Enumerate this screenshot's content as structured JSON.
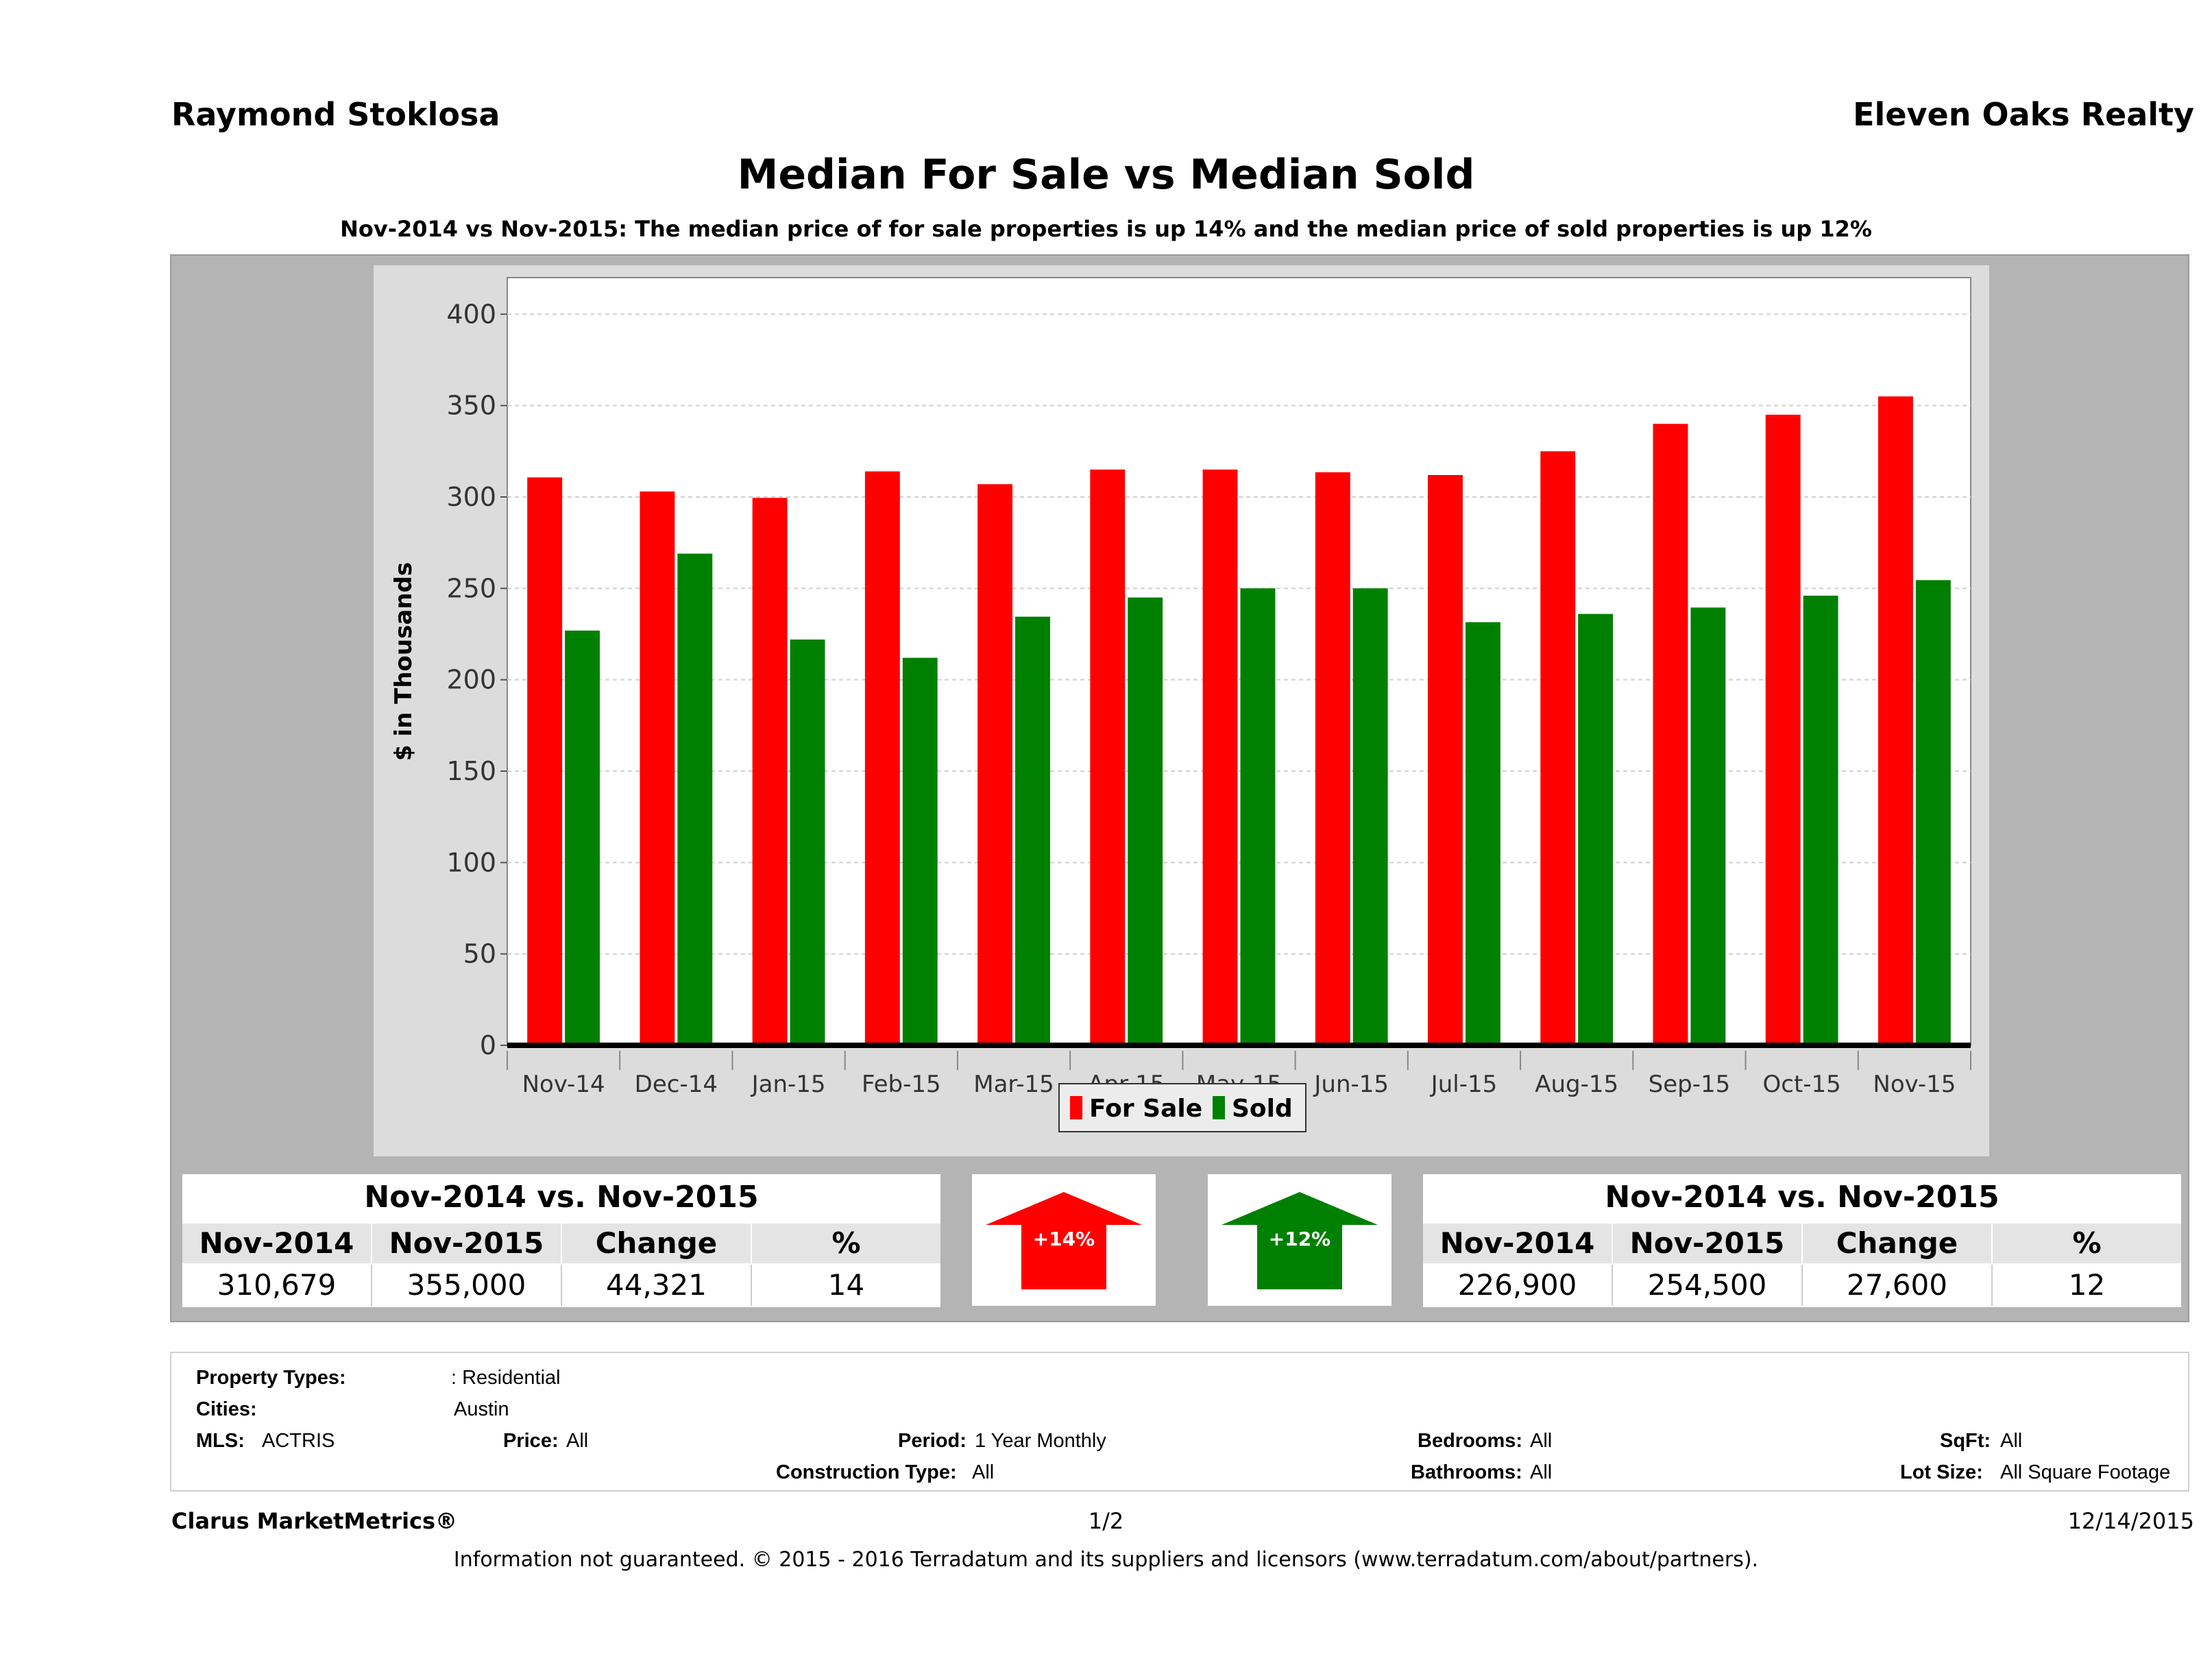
{
  "header": {
    "agent": "Raymond Stoklosa",
    "brokerage": "Eleven Oaks Realty",
    "title": "Median For Sale vs Median Sold",
    "subtitle": "Nov-2014 vs Nov-2015: The median price of for sale properties is up 14% and the median price of sold properties is up 12%"
  },
  "chart_data": {
    "type": "bar",
    "ylabel": "$ in Thousands",
    "xlabel": "",
    "ylim": [
      0,
      420
    ],
    "yticks": [
      0,
      50,
      100,
      150,
      200,
      250,
      300,
      350,
      400
    ],
    "grid": true,
    "legend_position": "bottom-center",
    "categories": [
      "Nov-14",
      "Dec-14",
      "Jan-15",
      "Feb-15",
      "Mar-15",
      "Apr-15",
      "May-15",
      "Jun-15",
      "Jul-15",
      "Aug-15",
      "Sep-15",
      "Oct-15",
      "Nov-15"
    ],
    "series": [
      {
        "name": "For Sale",
        "color": "#ff0000",
        "values": [
          310.7,
          303,
          299.5,
          314,
          307,
          315,
          315,
          313.5,
          312,
          325,
          340,
          345,
          355
        ]
      },
      {
        "name": "Sold",
        "color": "#008000",
        "values": [
          226.9,
          269,
          222,
          212,
          234.5,
          245,
          250,
          250,
          231.5,
          236,
          239.5,
          246,
          254.5
        ]
      }
    ]
  },
  "tables": {
    "for_sale": {
      "heading": "Nov-2014 vs. Nov-2015",
      "columns": [
        "Nov-2014",
        "Nov-2015",
        "Change",
        "%"
      ],
      "values": [
        "310,679",
        "355,000",
        "44,321",
        "14"
      ]
    },
    "sold": {
      "heading": "Nov-2014 vs. Nov-2015",
      "columns": [
        "Nov-2014",
        "Nov-2015",
        "Change",
        "%"
      ],
      "values": [
        "226,900",
        "254,500",
        "27,600",
        "12"
      ]
    }
  },
  "arrows": {
    "for_sale": {
      "label": "+14%",
      "color": "#ff0000"
    },
    "sold": {
      "label": "+12%",
      "color": "#008000"
    }
  },
  "criteria": {
    "property_types_label": "Property Types:",
    "property_types_value": ": Residential",
    "cities_label": "Cities:",
    "cities_value": "Austin",
    "mls_label": "MLS:",
    "mls_value": "ACTRIS",
    "price_label": "Price:",
    "price_value": "All",
    "period_label": "Period:",
    "period_value": "1 Year Monthly",
    "construction_label": "Construction Type:",
    "construction_value": "All",
    "bedrooms_label": "Bedrooms:",
    "bedrooms_value": "All",
    "bathrooms_label": "Bathrooms:",
    "bathrooms_value": "All",
    "sqft_label": "SqFt:",
    "sqft_value": "All",
    "lotsize_label": "Lot Size:",
    "lotsize_value": "All Square Footage"
  },
  "footer": {
    "product": "Clarus MarketMetrics®",
    "page": "1/2",
    "date": "12/14/2015",
    "disclaimer": "Information not guaranteed. © 2015 - 2016 Terradatum and its suppliers and licensors (www.terradatum.com/about/partners)."
  }
}
